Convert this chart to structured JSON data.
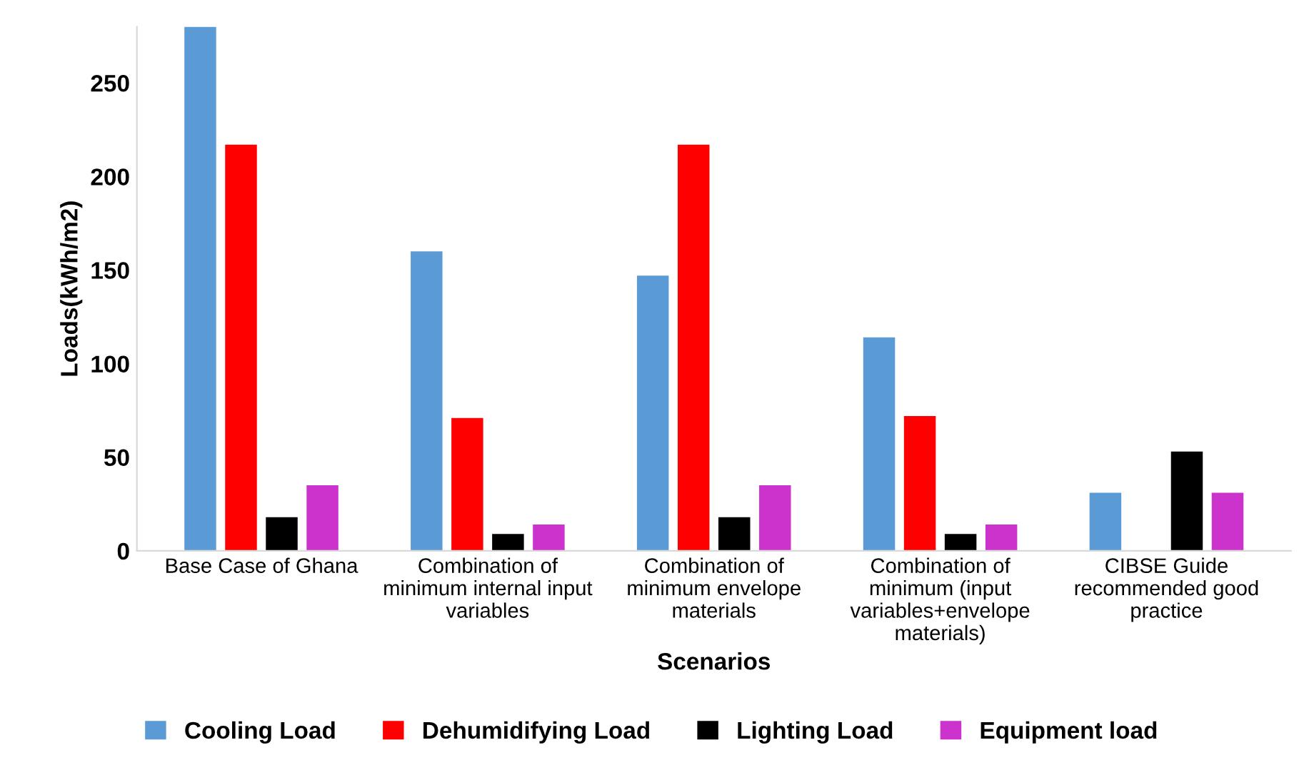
{
  "chart_data": {
    "type": "bar",
    "xlabel": "Scenarios",
    "ylabel": "Loads(kWh/m2)",
    "categories": [
      "Base Case of Ghana",
      "Combination of\nminimum internal input\nvariables",
      "Combination of\nminimum envelope\nmaterials",
      "Combination of\nminimum (input\nvariables+envelope\nmaterials)",
      "CIBSE Guide\nrecommended good\npractice"
    ],
    "series": [
      {
        "name": "Cooling Load",
        "color": "#5b9bd5",
        "values": [
          280,
          160,
          147,
          114,
          31
        ]
      },
      {
        "name": "Dehumidifying Load",
        "color": "#ff0000",
        "values": [
          217,
          71,
          217,
          72,
          null
        ]
      },
      {
        "name": "Lighting Load",
        "color": "#000000",
        "values": [
          18,
          9,
          18,
          9,
          53
        ]
      },
      {
        "name": "Equipment load",
        "color": "#cc33cc",
        "values": [
          35,
          14,
          35,
          14,
          31
        ]
      }
    ],
    "ylim": [
      0,
      280
    ],
    "yticks": [
      0,
      50,
      100,
      150,
      200,
      250
    ],
    "grid": false,
    "legend": "bottom"
  }
}
